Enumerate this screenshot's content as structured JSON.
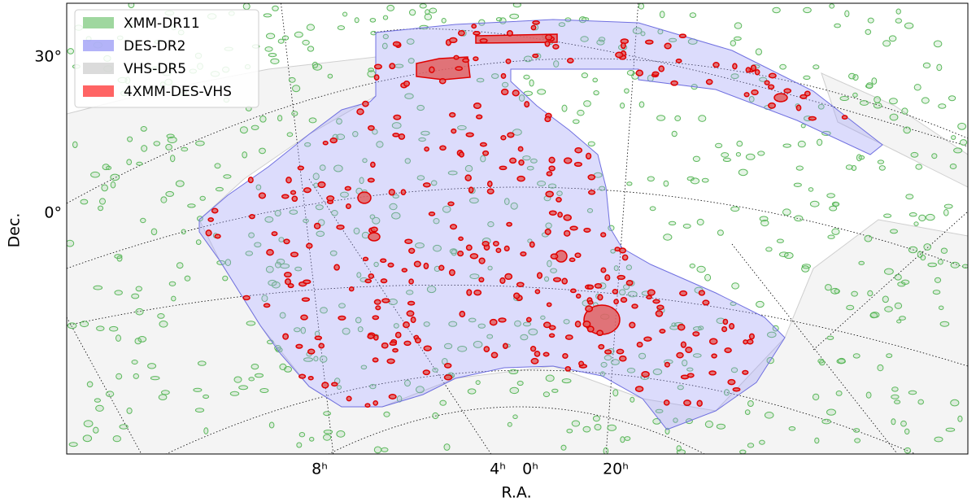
{
  "map": {
    "legend": [
      {
        "name": "XMM-DR11",
        "color": "#7fc97f"
      },
      {
        "name": "DES-DR2",
        "color": "#9a9af5"
      },
      {
        "name": "VHS-DR5",
        "color": "#cfcfcf"
      },
      {
        "name": "4XMM-DES-VHS",
        "color": "#ff3030"
      }
    ],
    "y_label": "Dec.",
    "x_label": "R.A.",
    "dec_ticks": [
      {
        "value": 30,
        "label": "30°"
      },
      {
        "value": 0,
        "label": "0°"
      }
    ],
    "ra_ticks": [
      {
        "value": 8,
        "label": "8ʰ"
      },
      {
        "value": 4,
        "label": "4ʰ"
      },
      {
        "value": 0,
        "label": "0ʰ"
      },
      {
        "value": 20,
        "label": "20ʰ"
      }
    ]
  }
}
